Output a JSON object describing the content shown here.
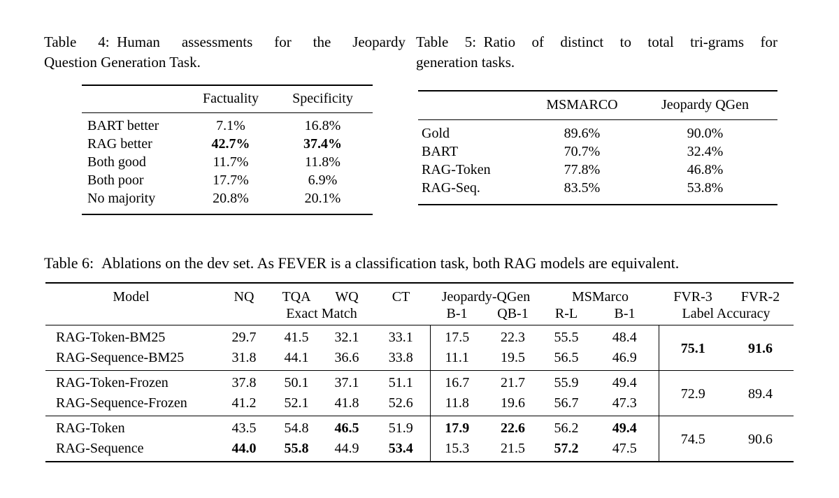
{
  "page": {
    "background": "#ffffff",
    "text_color": "#000000"
  },
  "table4": {
    "caption_lines": [
      "Table 4: Human assessments for the Jeopardy",
      "Question Generation Task."
    ],
    "columns": [
      "",
      "Factuality",
      "Specificity"
    ],
    "rows": [
      {
        "label": "BART better",
        "factuality": "7.1%",
        "specificity": "16.8%",
        "bold": false
      },
      {
        "label": "RAG better",
        "factuality": "42.7%",
        "specificity": "37.4%",
        "bold": true
      },
      {
        "label": "Both good",
        "factuality": "11.7%",
        "specificity": "11.8%",
        "bold": false
      },
      {
        "label": "Both poor",
        "factuality": "17.7%",
        "specificity": "6.9%",
        "bold": false
      },
      {
        "label": "No majority",
        "factuality": "20.8%",
        "specificity": "20.1%",
        "bold": false
      }
    ]
  },
  "table5": {
    "caption_lines": [
      "Table 5: Ratio of distinct to total tri-grams for",
      "generation tasks."
    ],
    "columns": [
      "",
      "MSMARCO",
      "Jeopardy QGen"
    ],
    "rows": [
      {
        "label": "Gold",
        "msmarco": "89.6%",
        "jeopardy": "90.0%"
      },
      {
        "label": "BART",
        "msmarco": "70.7%",
        "jeopardy": "32.4%"
      },
      {
        "label": "RAG-Token",
        "msmarco": "77.8%",
        "jeopardy": "46.8%"
      },
      {
        "label": "RAG-Seq.",
        "msmarco": "83.5%",
        "jeopardy": "53.8%"
      }
    ]
  },
  "table6": {
    "caption": "Table 6: Ablations on the dev set. As FEVER is a classification task, both RAG models are equivalent.",
    "header": {
      "model": "Model",
      "nq": "NQ",
      "tqa": "TQA",
      "wq": "WQ",
      "ct": "CT",
      "jeopardy_qgen": "Jeopardy-QGen",
      "msmarco": "MSMarco",
      "fvr3": "FVR-3",
      "fvr2": "FVR-2",
      "exact_match": "Exact Match",
      "b1": "B-1",
      "qb1": "QB-1",
      "rl": "R-L",
      "b1_ms": "B-1",
      "label_accuracy": "Label Accuracy"
    },
    "groups": [
      {
        "rows": [
          {
            "model": "RAG-Token-BM25",
            "values": [
              "29.7",
              "41.5",
              "32.1",
              "33.1",
              "17.5",
              "22.3",
              "55.5",
              "48.4"
            ],
            "bold": [
              false,
              false,
              false,
              false,
              false,
              false,
              false,
              false
            ]
          },
          {
            "model": "RAG-Sequence-BM25",
            "values": [
              "31.8",
              "44.1",
              "36.6",
              "33.8",
              "11.1",
              "19.5",
              "56.5",
              "46.9"
            ],
            "bold": [
              false,
              false,
              false,
              false,
              false,
              false,
              false,
              false
            ]
          }
        ],
        "fvr3": "75.1",
        "fvr2": "91.6",
        "fvr_bold": true
      },
      {
        "rows": [
          {
            "model": "RAG-Token-Frozen",
            "values": [
              "37.8",
              "50.1",
              "37.1",
              "51.1",
              "16.7",
              "21.7",
              "55.9",
              "49.4"
            ],
            "bold": [
              false,
              false,
              false,
              false,
              false,
              false,
              false,
              false
            ]
          },
          {
            "model": "RAG-Sequence-Frozen",
            "values": [
              "41.2",
              "52.1",
              "41.8",
              "52.6",
              "11.8",
              "19.6",
              "56.7",
              "47.3"
            ],
            "bold": [
              false,
              false,
              false,
              false,
              false,
              false,
              false,
              false
            ]
          }
        ],
        "fvr3": "72.9",
        "fvr2": "89.4",
        "fvr_bold": false
      },
      {
        "rows": [
          {
            "model": "RAG-Token",
            "values": [
              "43.5",
              "54.8",
              "46.5",
              "51.9",
              "17.9",
              "22.6",
              "56.2",
              "49.4"
            ],
            "bold": [
              false,
              false,
              true,
              false,
              true,
              true,
              false,
              true
            ]
          },
          {
            "model": "RAG-Sequence",
            "values": [
              "44.0",
              "55.8",
              "44.9",
              "53.4",
              "15.3",
              "21.5",
              "57.2",
              "47.5"
            ],
            "bold": [
              true,
              true,
              false,
              true,
              false,
              false,
              true,
              false
            ]
          }
        ],
        "fvr3": "74.5",
        "fvr2": "90.6",
        "fvr_bold": false
      }
    ]
  }
}
